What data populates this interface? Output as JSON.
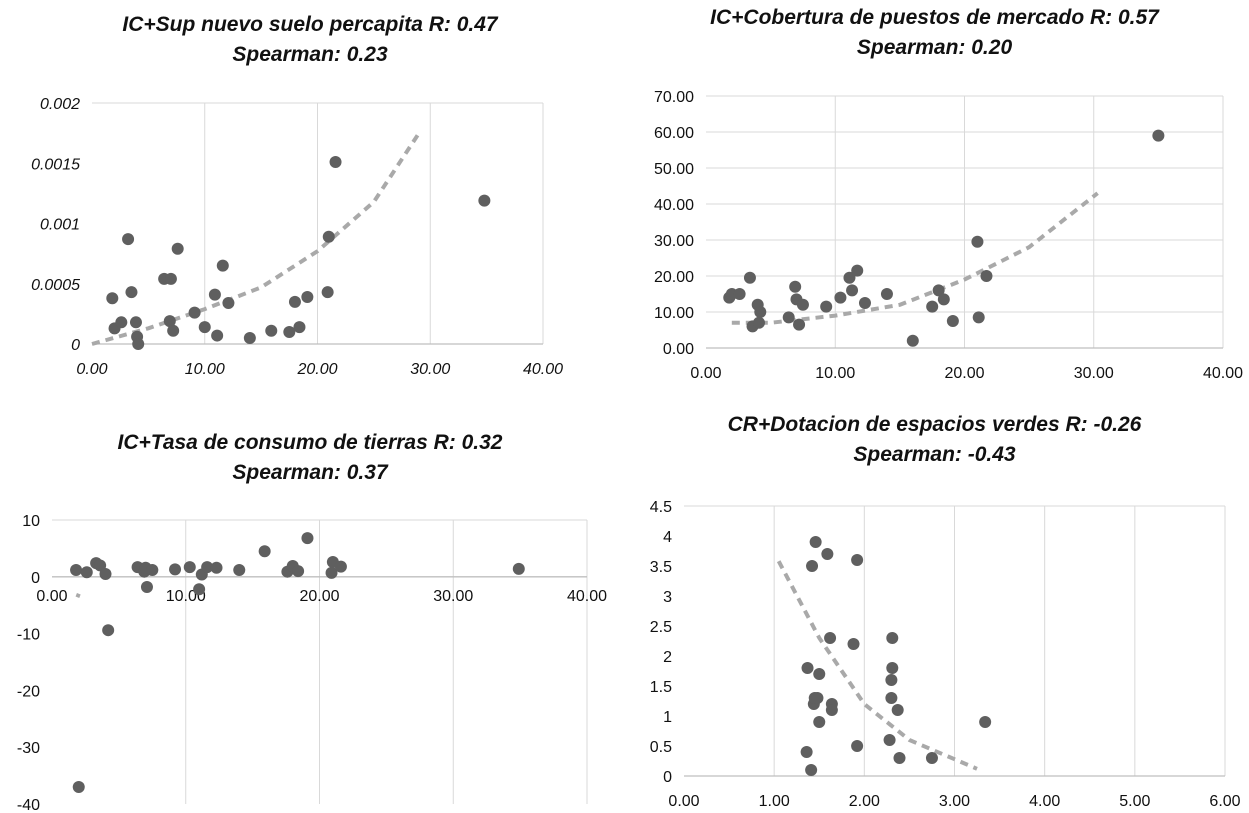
{
  "colors": {
    "point": "#5f5f5f",
    "trend": "#a9a9a9",
    "grid": "#d9d9d9",
    "axis": "#bfbfbf",
    "text": "#111111"
  },
  "chart_data": [
    {
      "type": "scatter",
      "title_line1": "IC+Sup nuevo suelo percapita R: 0.47",
      "title_line2": "Spearman: 0.23",
      "xlim": [
        0,
        40
      ],
      "ylim": [
        0,
        0.002
      ],
      "x_ticks": [
        0,
        10,
        20,
        30,
        40
      ],
      "y_ticks": [
        0,
        0.0005,
        0.001,
        0.0015,
        0.002
      ],
      "x_tick_labels": [
        "0.00",
        "10.00",
        "20.00",
        "30.00",
        "40.00"
      ],
      "y_tick_labels": [
        "0",
        "0.0005",
        "0.001",
        "0.0015",
        "0.002"
      ],
      "italic_ticks": true,
      "grid": "vertical",
      "points": [
        [
          1.8,
          0.00038
        ],
        [
          2.0,
          0.00013
        ],
        [
          2.6,
          0.00018
        ],
        [
          3.2,
          0.00087
        ],
        [
          3.5,
          0.00043
        ],
        [
          3.9,
          0.00018
        ],
        [
          4.0,
          6e-05
        ],
        [
          4.1,
          0.0
        ],
        [
          6.4,
          0.00054
        ],
        [
          6.9,
          0.00019
        ],
        [
          7.0,
          0.00054
        ],
        [
          7.2,
          0.00011
        ],
        [
          7.6,
          0.00079
        ],
        [
          9.1,
          0.00026
        ],
        [
          10.0,
          0.00014
        ],
        [
          10.9,
          0.00041
        ],
        [
          11.1,
          7e-05
        ],
        [
          11.6,
          0.00065
        ],
        [
          12.1,
          0.00034
        ],
        [
          14.0,
          5e-05
        ],
        [
          15.9,
          0.00011
        ],
        [
          17.5,
          0.0001
        ],
        [
          18.0,
          0.00035
        ],
        [
          18.4,
          0.00014
        ],
        [
          19.1,
          0.00039
        ],
        [
          20.9,
          0.00043
        ],
        [
          21.0,
          0.00089
        ],
        [
          21.6,
          0.00151
        ],
        [
          34.8,
          0.00119
        ]
      ],
      "trendline": [
        [
          0,
          0.0
        ],
        [
          5,
          0.00013
        ],
        [
          10,
          0.00029
        ],
        [
          15,
          0.00047
        ],
        [
          20,
          0.00077
        ],
        [
          25,
          0.00118
        ],
        [
          29,
          0.00175
        ]
      ]
    },
    {
      "type": "scatter",
      "title_line1": "IC+Cobertura de puestos de mercado R: 0.57",
      "title_line2": "Spearman: 0.20",
      "xlim": [
        0,
        40
      ],
      "ylim": [
        0,
        70
      ],
      "x_ticks": [
        0,
        10,
        20,
        30,
        40
      ],
      "y_ticks": [
        0,
        10,
        20,
        30,
        40,
        50,
        60,
        70
      ],
      "x_tick_labels": [
        "0.00",
        "10.00",
        "20.00",
        "30.00",
        "40.00"
      ],
      "y_tick_labels": [
        "0.00",
        "10.00",
        "20.00",
        "30.00",
        "40.00",
        "50.00",
        "60.00",
        "70.00"
      ],
      "italic_ticks": false,
      "grid": "both",
      "points": [
        [
          1.8,
          14.0
        ],
        [
          2.0,
          15.0
        ],
        [
          2.6,
          15.0
        ],
        [
          3.4,
          19.5
        ],
        [
          3.6,
          6.0
        ],
        [
          4.0,
          12.0
        ],
        [
          4.1,
          7.0
        ],
        [
          4.2,
          10.0
        ],
        [
          6.4,
          8.5
        ],
        [
          6.9,
          17.0
        ],
        [
          7.0,
          13.5
        ],
        [
          7.2,
          6.5
        ],
        [
          7.5,
          12.0
        ],
        [
          9.3,
          11.5
        ],
        [
          10.4,
          14.0
        ],
        [
          11.1,
          19.5
        ],
        [
          11.3,
          16.0
        ],
        [
          11.7,
          21.5
        ],
        [
          12.3,
          12.5
        ],
        [
          14.0,
          15.0
        ],
        [
          16.0,
          2.0
        ],
        [
          17.5,
          11.5
        ],
        [
          18.0,
          16.0
        ],
        [
          18.4,
          13.5
        ],
        [
          19.1,
          7.5
        ],
        [
          21.0,
          29.5
        ],
        [
          21.1,
          8.5
        ],
        [
          21.7,
          20.0
        ],
        [
          35.0,
          59.0
        ]
      ],
      "trendline": [
        [
          2,
          7.0
        ],
        [
          5,
          7.0
        ],
        [
          10,
          9.0
        ],
        [
          15,
          12.0
        ],
        [
          20,
          19.0
        ],
        [
          25,
          28.0
        ],
        [
          30.3,
          43.0
        ]
      ]
    },
    {
      "type": "scatter",
      "title_line1": "IC+Tasa de consumo de tierras R: 0.32",
      "title_line2": "Spearman: 0.37",
      "xlim": [
        0,
        40
      ],
      "ylim": [
        -40,
        10
      ],
      "x_ticks": [
        0,
        10,
        20,
        30,
        40
      ],
      "y_ticks": [
        -40,
        -30,
        -20,
        -10,
        0,
        10
      ],
      "x_tick_labels": [
        "0.00",
        "10.00",
        "20.00",
        "30.00",
        "40.00"
      ],
      "y_tick_labels": [
        "-40",
        "-30",
        "-20",
        "-10",
        "0",
        "10"
      ],
      "italic_ticks": false,
      "grid": "vertical",
      "points": [
        [
          1.8,
          1.2
        ],
        [
          2.0,
          -37.0
        ],
        [
          2.6,
          0.8
        ],
        [
          3.3,
          2.4
        ],
        [
          3.6,
          2.0
        ],
        [
          4.0,
          0.5
        ],
        [
          4.2,
          -9.4
        ],
        [
          6.4,
          1.7
        ],
        [
          6.9,
          0.9
        ],
        [
          7.0,
          1.6
        ],
        [
          7.1,
          -1.8
        ],
        [
          7.5,
          1.2
        ],
        [
          9.2,
          1.3
        ],
        [
          10.3,
          1.7
        ],
        [
          11.0,
          -2.2
        ],
        [
          11.2,
          0.4
        ],
        [
          11.6,
          1.7
        ],
        [
          12.3,
          1.6
        ],
        [
          14.0,
          1.2
        ],
        [
          15.9,
          4.5
        ],
        [
          17.6,
          0.9
        ],
        [
          18.0,
          1.9
        ],
        [
          18.4,
          1.0
        ],
        [
          19.1,
          6.8
        ],
        [
          20.9,
          0.7
        ],
        [
          21.0,
          2.6
        ],
        [
          21.6,
          1.8
        ],
        [
          34.9,
          1.4
        ]
      ],
      "trendline": [
        [
          1.9,
          -3.6
        ],
        [
          2.0,
          -3.0
        ]
      ]
    },
    {
      "type": "scatter",
      "title_line1": "CR+Dotacion de espacios verdes R: -0.26",
      "title_line2": "Spearman: -0.43",
      "xlim": [
        0,
        6
      ],
      "ylim": [
        0,
        4.5
      ],
      "x_ticks": [
        0,
        1,
        2,
        3,
        4,
        5,
        6
      ],
      "y_ticks": [
        0,
        0.5,
        1,
        1.5,
        2,
        2.5,
        3,
        3.5,
        4,
        4.5
      ],
      "x_tick_labels": [
        "0.00",
        "1.00",
        "2.00",
        "3.00",
        "4.00",
        "5.00",
        "6.00"
      ],
      "y_tick_labels": [
        "0",
        "0.5",
        "1",
        "1.5",
        "2",
        "2.5",
        "3",
        "3.5",
        "4",
        "4.5"
      ],
      "italic_ticks": false,
      "grid": "vertical",
      "points": [
        [
          1.36,
          0.4
        ],
        [
          1.37,
          1.8
        ],
        [
          1.41,
          0.1
        ],
        [
          1.42,
          3.5
        ],
        [
          1.44,
          1.2
        ],
        [
          1.45,
          1.3
        ],
        [
          1.46,
          3.9
        ],
        [
          1.48,
          1.3
        ],
        [
          1.5,
          0.9
        ],
        [
          1.5,
          1.7
        ],
        [
          1.59,
          3.7
        ],
        [
          1.62,
          2.3
        ],
        [
          1.64,
          1.2
        ],
        [
          1.64,
          1.1
        ],
        [
          1.88,
          2.2
        ],
        [
          1.92,
          3.6
        ],
        [
          1.92,
          0.5
        ],
        [
          2.28,
          0.6
        ],
        [
          2.3,
          1.6
        ],
        [
          2.3,
          1.3
        ],
        [
          2.31,
          1.8
        ],
        [
          2.31,
          2.3
        ],
        [
          2.37,
          1.1
        ],
        [
          2.39,
          0.3
        ],
        [
          2.75,
          0.3
        ],
        [
          3.34,
          0.9
        ]
      ],
      "trendline": [
        [
          1.05,
          3.58
        ],
        [
          1.5,
          2.3
        ],
        [
          2.0,
          1.2
        ],
        [
          2.5,
          0.6
        ],
        [
          3.0,
          0.28
        ],
        [
          3.25,
          0.12
        ]
      ]
    }
  ]
}
